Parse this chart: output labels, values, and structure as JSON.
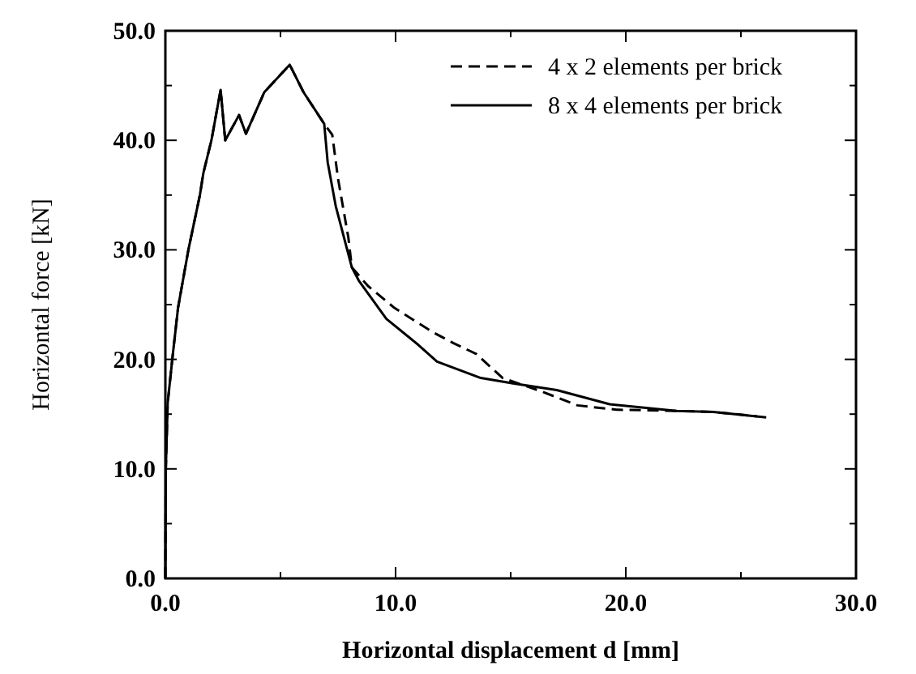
{
  "chart_data": {
    "type": "line",
    "xlabel": "Horizontal displacement d [mm]",
    "ylabel": "Horizontal force [kN]",
    "xlim": [
      0,
      30
    ],
    "ylim": [
      0,
      50
    ],
    "xticks": [
      {
        "value": 0,
        "label": "0.0"
      },
      {
        "value": 5,
        "label": null
      },
      {
        "value": 10,
        "label": "10.0"
      },
      {
        "value": 15,
        "label": null
      },
      {
        "value": 20,
        "label": "20.0"
      },
      {
        "value": 25,
        "label": null
      },
      {
        "value": 30,
        "label": "30.0"
      }
    ],
    "yticks": [
      {
        "value": 0,
        "label": "0.0"
      },
      {
        "value": 5,
        "label": null
      },
      {
        "value": 10,
        "label": "10.0"
      },
      {
        "value": 15,
        "label": null
      },
      {
        "value": 20,
        "label": "20.0"
      },
      {
        "value": 25,
        "label": null
      },
      {
        "value": 30,
        "label": "30.0"
      },
      {
        "value": 35,
        "label": null
      },
      {
        "value": 40,
        "label": "40.0"
      },
      {
        "value": 45,
        "label": null
      },
      {
        "value": 50,
        "label": "50.0"
      }
    ],
    "legend": "top right",
    "grid": false,
    "series": [
      {
        "name": "4 x 2 elements per brick",
        "color": "#000000",
        "line_style": "dashed",
        "x": [
          0,
          0.02,
          0.1,
          0.3,
          0.55,
          1.0,
          1.5,
          1.65,
          2.0,
          2.4,
          2.6,
          3.2,
          3.5,
          4.3,
          5.4,
          6.0,
          6.9,
          7.25,
          7.5,
          7.95,
          8.1,
          8.8,
          9.95,
          11.6,
          12.5,
          13.5,
          14.65,
          16.3,
          17.9,
          19.6,
          22.2,
          23.8,
          25.7
        ],
        "values": [
          0,
          10,
          16,
          20,
          24.7,
          30,
          35,
          37,
          40,
          44.6,
          40,
          42.3,
          40.6,
          44.4,
          46.9,
          44.4,
          41.5,
          40.5,
          36.5,
          31.1,
          28.4,
          26.7,
          24.7,
          22.5,
          21.5,
          20.5,
          18.3,
          17.1,
          15.8,
          15.4,
          15.3,
          15.2,
          14.8
        ]
      },
      {
        "name": "8 x 4 elements per brick",
        "color": "#000000",
        "line_style": "solid",
        "x": [
          0,
          0.02,
          0.1,
          0.3,
          0.55,
          1.0,
          1.5,
          1.65,
          2.0,
          2.4,
          2.6,
          3.2,
          3.5,
          4.3,
          5.4,
          6.0,
          6.9,
          7.05,
          7.4,
          8.1,
          8.4,
          9.6,
          11.0,
          11.8,
          13.7,
          15.1,
          17.0,
          19.3,
          22.2,
          23.8,
          26.1
        ],
        "values": [
          0,
          10,
          16,
          20,
          24.7,
          30,
          35,
          37,
          40,
          44.6,
          40,
          42.3,
          40.6,
          44.4,
          46.9,
          44.4,
          41.5,
          38,
          34,
          28.4,
          27.2,
          23.7,
          21.3,
          19.8,
          18.3,
          17.8,
          17.2,
          15.9,
          15.3,
          15.2,
          14.7
        ]
      }
    ]
  }
}
